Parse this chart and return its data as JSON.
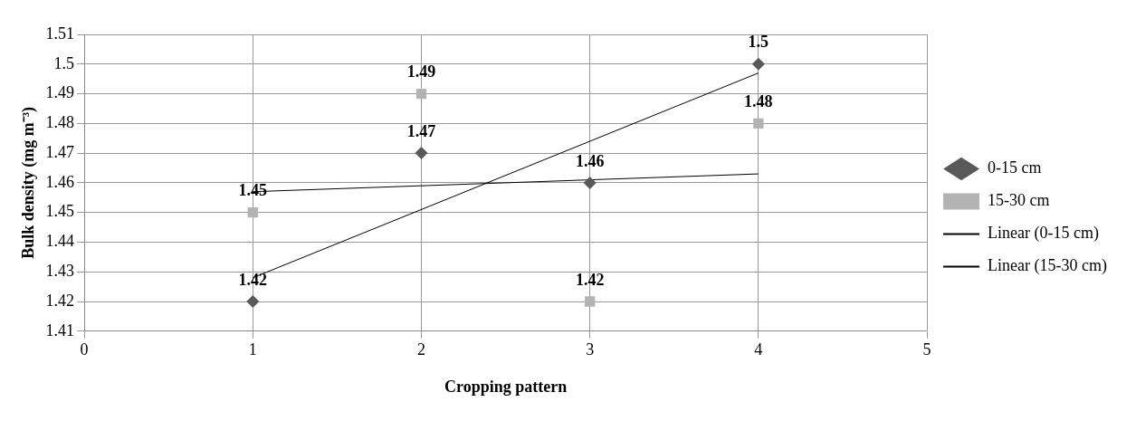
{
  "chart_data": {
    "type": "scatter",
    "xlabel": "Cropping pattern",
    "ylabel": "Bulk density (mg m⁻³)",
    "xlim": [
      0,
      5
    ],
    "xticks": [
      0,
      1,
      2,
      3,
      4,
      5
    ],
    "ylim": [
      1.41,
      1.51
    ],
    "yticks": [
      1.41,
      1.42,
      1.43,
      1.44,
      1.45,
      1.46,
      1.47,
      1.48,
      1.49,
      {
        "value": 1.5,
        "label": "1.5"
      },
      1.51
    ],
    "grid": true,
    "legend": "right",
    "series": [
      {
        "name": "0-15 cm",
        "type": "scatter",
        "marker": "diamond",
        "color": "#595959",
        "x": [
          1,
          2,
          3,
          4
        ],
        "values": [
          1.42,
          1.47,
          1.46,
          1.5
        ],
        "value_labels": [
          "1.42",
          "1.47",
          "1.46",
          "1.5"
        ]
      },
      {
        "name": "15-30 cm",
        "type": "scatter",
        "marker": "square",
        "color": "#b3b3b3",
        "x": [
          1,
          2,
          3,
          4
        ],
        "values": [
          1.45,
          1.49,
          1.42,
          1.48
        ],
        "value_labels": [
          "1.45",
          "1.49",
          "1.42",
          "1.48"
        ]
      },
      {
        "name": "Linear (0-15 cm)",
        "type": "line",
        "marker": "none",
        "line_style": "solid",
        "color": "#000000",
        "x": [
          1,
          4
        ],
        "values": [
          1.428,
          1.497
        ]
      },
      {
        "name": "Linear (15-30 cm)",
        "type": "line",
        "marker": "none",
        "line_style": "solid",
        "color": "#000000",
        "x": [
          1,
          4
        ],
        "values": [
          1.457,
          1.463
        ]
      }
    ]
  }
}
